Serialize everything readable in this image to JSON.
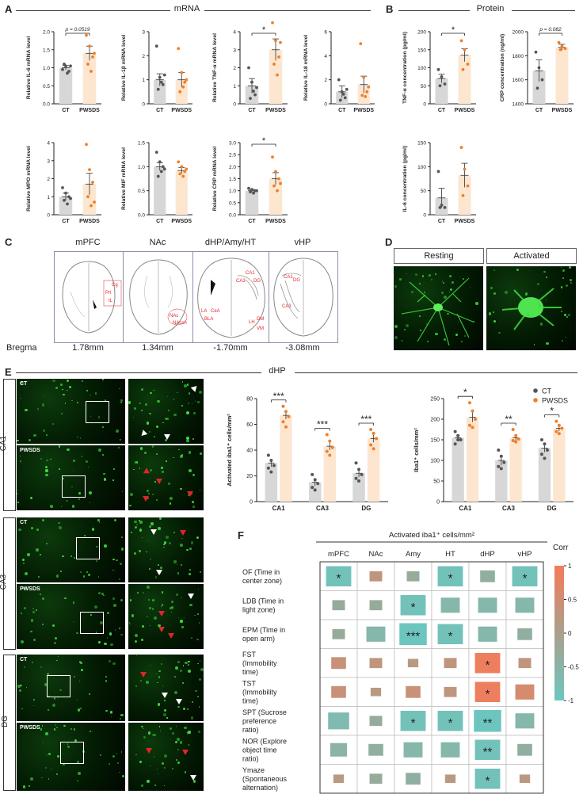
{
  "panels": {
    "A": "A",
    "B": "B",
    "C": "C",
    "D": "D",
    "E": "E",
    "F": "F"
  },
  "titles": {
    "mrna": "mRNA",
    "protein": "Protein",
    "dhp": "dHP",
    "corr_header": "Activated iba1⁺ cells/mm²"
  },
  "groups": [
    "CT",
    "PWSDS"
  ],
  "colors": {
    "ct_bar": "#d7d7d7",
    "ct_dot": "#555555",
    "pwsds_bar": "#fde6d0",
    "pwsds_dot": "#f07f27",
    "corr_pos": "#f47b5a",
    "corr_neg": "#6cc6bf"
  },
  "chart_data": [
    {
      "id": "il6-mrna",
      "type": "bar",
      "ylabel": "Relative IL-6 mRNA level",
      "ylim": [
        0,
        2.0
      ],
      "yticks": [
        "0.0",
        "0.5",
        "1.0",
        "1.5",
        "2.0"
      ],
      "categories": [
        "CT",
        "PWSDS"
      ],
      "values": [
        1.0,
        1.4
      ],
      "sem": [
        0.06,
        0.2
      ],
      "points": [
        [
          0.95,
          1.05,
          0.9,
          1.1,
          0.85,
          1.05
        ],
        [
          1.9,
          1.6,
          1.3,
          1.1,
          0.9,
          1.4
        ]
      ],
      "annotation": "p = 0.0519"
    },
    {
      "id": "il1b-mrna",
      "type": "bar",
      "ylabel": "Relative IL-1β mRNA level",
      "ylim": [
        0,
        3
      ],
      "yticks": [
        "0",
        "1",
        "2",
        "3"
      ],
      "categories": [
        "CT",
        "PWSDS"
      ],
      "values": [
        1.0,
        1.0
      ],
      "sem": [
        0.25,
        0.3
      ],
      "points": [
        [
          2.4,
          1.1,
          0.8,
          0.6,
          0.9,
          1.2
        ],
        [
          2.3,
          1.3,
          0.9,
          0.5,
          0.7,
          1.0
        ]
      ],
      "annotation": ""
    },
    {
      "id": "tnfa-mrna",
      "type": "bar",
      "ylabel": "Relative TNF-α mRNA level",
      "ylim": [
        0,
        4
      ],
      "yticks": [
        "0",
        "1",
        "2",
        "3",
        "4"
      ],
      "categories": [
        "CT",
        "PWSDS"
      ],
      "values": [
        1.0,
        3.0
      ],
      "sem": [
        0.4,
        0.6
      ],
      "points": [
        [
          2.0,
          1.2,
          0.5,
          0.3,
          0.7,
          0.9
        ],
        [
          4.5,
          3.5,
          2.6,
          2.2,
          1.6,
          3.4
        ]
      ],
      "annotation": "*"
    },
    {
      "id": "il18-mrna",
      "type": "bar",
      "ylabel": "Relative IL-18 mRNA level",
      "ylim": [
        0,
        6
      ],
      "yticks": [
        "0",
        "2",
        "4",
        "6"
      ],
      "categories": [
        "CT",
        "PWSDS"
      ],
      "values": [
        1.0,
        1.6
      ],
      "sem": [
        0.5,
        0.7
      ],
      "points": [
        [
          2.0,
          1.0,
          0.5,
          0.3,
          0.8,
          1.2
        ],
        [
          5.0,
          2.2,
          1.0,
          0.7,
          0.6,
          1.4
        ]
      ],
      "annotation": ""
    },
    {
      "id": "mpo-mrna",
      "type": "bar",
      "ylabel": "Relative MPO mRNA level",
      "ylim": [
        0,
        4
      ],
      "yticks": [
        "0",
        "1",
        "2",
        "3",
        "4"
      ],
      "categories": [
        "CT",
        "PWSDS"
      ],
      "values": [
        1.0,
        1.7
      ],
      "sem": [
        0.2,
        0.6
      ],
      "points": [
        [
          1.5,
          1.2,
          1.0,
          0.8,
          0.6,
          0.9
        ],
        [
          3.9,
          2.5,
          1.8,
          1.0,
          0.5,
          0.7
        ]
      ],
      "annotation": ""
    },
    {
      "id": "mif-mrna",
      "type": "bar",
      "ylabel": "Relative MIF mRNA level",
      "ylim": [
        0,
        1.5
      ],
      "yticks": [
        "0.0",
        "0.5",
        "1.0",
        "1.5"
      ],
      "categories": [
        "CT",
        "PWSDS"
      ],
      "values": [
        1.0,
        0.92
      ],
      "sem": [
        0.08,
        0.06
      ],
      "points": [
        [
          1.3,
          1.1,
          1.0,
          0.8,
          0.9,
          0.95
        ],
        [
          1.1,
          1.0,
          0.9,
          0.85,
          0.8,
          0.95
        ]
      ],
      "annotation": ""
    },
    {
      "id": "crp-mrna",
      "type": "bar",
      "ylabel": "Relative CRP mRNA level",
      "ylim": [
        0,
        3.0
      ],
      "yticks": [
        "0.0",
        "0.5",
        "1.0",
        "1.5",
        "2.0",
        "2.5",
        "3.0"
      ],
      "categories": [
        "CT",
        "PWSDS"
      ],
      "values": [
        1.0,
        1.5
      ],
      "sem": [
        0.05,
        0.25
      ],
      "points": [
        [
          1.1,
          1.05,
          1.0,
          0.95,
          0.9,
          1.0
        ],
        [
          2.4,
          1.8,
          1.5,
          1.2,
          1.0,
          1.3
        ]
      ],
      "annotation": "*"
    },
    {
      "id": "tnfa-protein",
      "type": "bar",
      "ylabel": "TNF-α concentration (pg/ml)",
      "ylim": [
        0,
        200
      ],
      "yticks": [
        "0",
        "50",
        "100",
        "150",
        "200"
      ],
      "categories": [
        "CT",
        "PWSDS"
      ],
      "values": [
        70,
        135
      ],
      "sem": [
        12,
        18
      ],
      "points": [
        [
          95,
          75,
          55,
          50
        ],
        [
          175,
          150,
          110,
          95
        ]
      ],
      "annotation": "*"
    },
    {
      "id": "crp-protein",
      "type": "bar",
      "ylabel": "CRP concentration (ng/ml)",
      "ylim": [
        1400,
        2000
      ],
      "yticks": [
        "1400",
        "1600",
        "1800",
        "2000"
      ],
      "categories": [
        "CT",
        "PWSDS"
      ],
      "values": [
        1675,
        1870
      ],
      "sem": [
        90,
        25
      ],
      "points": [
        [
          1830,
          1700,
          1600,
          1530
        ],
        [
          1910,
          1880,
          1860,
          1850
        ]
      ],
      "annotation": "p = 0.082"
    },
    {
      "id": "il6-protein",
      "type": "bar",
      "ylabel": "IL-6 concentration (pg/ml)",
      "ylim": [
        0,
        150
      ],
      "yticks": [
        "0",
        "50",
        "100",
        "150"
      ],
      "categories": [
        "CT",
        "PWSDS"
      ],
      "values": [
        35,
        82
      ],
      "sem": [
        20,
        25
      ],
      "points": [
        [
          90,
          20,
          15,
          15
        ],
        [
          140,
          95,
          60,
          40
        ]
      ],
      "annotation": ""
    },
    {
      "id": "activated-iba1",
      "type": "bar",
      "ylabel": "Activated iba1⁺ cells/mm²",
      "ylim": [
        0,
        80
      ],
      "yticks": [
        "0",
        "20",
        "40",
        "60",
        "80"
      ],
      "categories": [
        "CA1",
        "CA3",
        "DG"
      ],
      "series": [
        {
          "name": "CT",
          "values": [
            30,
            15,
            22
          ],
          "sem": [
            3,
            3,
            3
          ],
          "points": [
            [
              36,
              32,
              28,
              26,
              23
            ],
            [
              21,
              17,
              14,
              11,
              9
            ],
            [
              30,
              25,
              21,
              18,
              16
            ]
          ]
        },
        {
          "name": "PWSDS",
          "values": [
            67,
            43,
            49
          ],
          "sem": [
            3,
            3,
            3
          ],
          "points": [
            [
              74,
              70,
              66,
              62,
              58
            ],
            [
              52,
              47,
              42,
              39,
              36
            ],
            [
              56,
              53,
              49,
              44,
              41
            ]
          ]
        }
      ],
      "annotations": [
        "***",
        "***",
        "***"
      ]
    },
    {
      "id": "iba1-cells",
      "type": "bar",
      "ylabel": "Iba1⁺ cells/mm²",
      "ylim": [
        0,
        250
      ],
      "yticks": [
        "0",
        "50",
        "100",
        "150",
        "200",
        "250"
      ],
      "categories": [
        "CA1",
        "CA3",
        "DG"
      ],
      "series": [
        {
          "name": "CT",
          "values": [
            155,
            100,
            130
          ],
          "sem": [
            8,
            12,
            10
          ],
          "points": [
            [
              170,
              160,
              150,
              140,
              150
            ],
            [
              125,
              110,
              95,
              85,
              80
            ],
            [
              150,
              140,
              125,
              115,
              105
            ]
          ]
        },
        {
          "name": "PWSDS",
          "values": [
            205,
            155,
            178
          ],
          "sem": [
            12,
            8,
            7
          ],
          "points": [
            [
              240,
              220,
              200,
              185,
              180
            ],
            [
              175,
              160,
              152,
              148,
              145
            ],
            [
              195,
              185,
              178,
              170,
              165
            ]
          ]
        }
      ],
      "annotations": [
        "*",
        "**",
        "*"
      ],
      "legend": [
        "CT",
        "PWSDS"
      ]
    },
    {
      "id": "correlation",
      "type": "heatmap",
      "title": "Activated iba1⁺ cells/mm²",
      "columns": [
        "mPFC",
        "NAc",
        "Amy",
        "HT",
        "dHP",
        "vHP"
      ],
      "rows": [
        "OF (Time in center zone)",
        "LDB (Time in light zone)",
        "EPM (Time in open arm)",
        "FST (Immobility time)",
        "TST (Immobility time)",
        "SPT (Sucrose preference ratio)",
        "NOR (Explore object time ratio)",
        "Ymaze (Spontaneous alternation)"
      ],
      "values": [
        [
          -0.9,
          0.3,
          -0.3,
          -0.9,
          -0.4,
          -0.9
        ],
        [
          -0.3,
          -0.3,
          -0.9,
          -0.6,
          -0.6,
          -0.6
        ],
        [
          -0.3,
          -0.6,
          -1.0,
          -0.9,
          -0.6,
          -0.4
        ],
        [
          0.4,
          0.3,
          0.2,
          0.3,
          0.9,
          0.3
        ],
        [
          0.4,
          0.2,
          0.4,
          0.3,
          0.9,
          0.6
        ],
        [
          -0.7,
          -0.3,
          -0.9,
          -0.9,
          -1.0,
          -0.6
        ],
        [
          -0.5,
          -0.4,
          -0.6,
          -0.6,
          -0.9,
          -0.4
        ],
        [
          0.2,
          -0.3,
          -0.4,
          0.2,
          -0.9,
          0.2
        ]
      ],
      "stars": [
        [
          "*",
          "",
          "",
          "*",
          "",
          "*"
        ],
        [
          "",
          "",
          "*",
          "",
          "",
          ""
        ],
        [
          "",
          "",
          "***",
          "*",
          "",
          ""
        ],
        [
          "",
          "",
          "",
          "",
          "*",
          ""
        ],
        [
          "",
          "",
          "",
          "",
          "*",
          ""
        ],
        [
          "",
          "",
          "*",
          "*",
          "**",
          ""
        ],
        [
          "",
          "",
          "",
          "",
          "**",
          ""
        ],
        [
          "",
          "",
          "",
          "",
          "*",
          ""
        ]
      ],
      "colorbar": {
        "label": "Corr",
        "ticks": [
          "1",
          "0.5",
          "0",
          "-0.5",
          "-1"
        ]
      }
    }
  ],
  "regions": [
    {
      "name": "mPFC",
      "bregma": "1.78mm",
      "labels": [
        "Cg",
        "Prl",
        "IL"
      ]
    },
    {
      "name": "NAc",
      "bregma": "1.34mm",
      "labels": [
        "NAc",
        "NAcsh"
      ]
    },
    {
      "name": "dHP/Amy/HT",
      "bregma": "-1.70mm",
      "labels": [
        "CA1",
        "CA3",
        "DG",
        "LA",
        "CeA",
        "BLA",
        "LH",
        "DM",
        "VM"
      ]
    },
    {
      "name": "vHP",
      "bregma": "-3.08mm",
      "labels": [
        "CA1",
        "DG",
        "CA3"
      ]
    }
  ],
  "bregma_label": "Bregma",
  "panel_d": {
    "resting": "Resting",
    "activated": "Activated"
  },
  "panel_e": {
    "rows": [
      "CA1",
      "CA3",
      "DG"
    ],
    "ct": "CT",
    "pwsds": "PWSDS"
  }
}
